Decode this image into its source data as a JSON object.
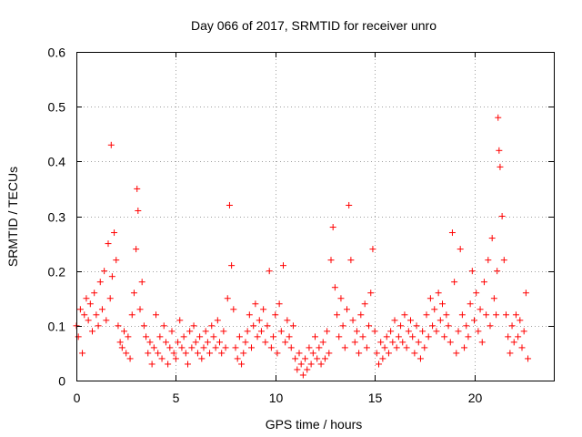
{
  "chart_data": {
    "type": "scatter",
    "title": "Day 066 of 2017, SRMTID for receiver unro",
    "xlabel": "GPS time / hours",
    "ylabel": "SRMTID / TECUs",
    "xlim": [
      0,
      24
    ],
    "ylim": [
      0,
      0.6
    ],
    "xticks": [
      0,
      5,
      10,
      15,
      20
    ],
    "xtick_labels": [
      "0",
      "5",
      "10",
      "15",
      "20"
    ],
    "yticks": [
      0,
      0.1,
      0.2,
      0.3,
      0.4,
      0.5,
      0.6
    ],
    "ytick_labels": [
      "0",
      "0.1",
      "0.2",
      "0.3",
      "0.4",
      "0.5",
      "0.6"
    ],
    "grid": true,
    "marker": "+",
    "series_color": "#ff0000",
    "series": [
      {
        "name": "SRMTID",
        "x": [
          0.0,
          0.1,
          0.2,
          0.3,
          0.4,
          0.5,
          0.6,
          0.7,
          0.8,
          0.9,
          1.0,
          1.1,
          1.2,
          1.3,
          1.4,
          1.5,
          1.6,
          1.7,
          1.75,
          1.8,
          1.9,
          2.0,
          2.1,
          2.2,
          2.3,
          2.4,
          2.5,
          2.6,
          2.7,
          2.8,
          2.9,
          3.0,
          3.05,
          3.1,
          3.2,
          3.3,
          3.4,
          3.5,
          3.6,
          3.7,
          3.8,
          3.9,
          4.0,
          4.1,
          4.2,
          4.3,
          4.4,
          4.5,
          4.6,
          4.7,
          4.8,
          4.9,
          5.0,
          5.1,
          5.2,
          5.3,
          5.4,
          5.5,
          5.6,
          5.7,
          5.8,
          5.9,
          6.0,
          6.1,
          6.2,
          6.3,
          6.4,
          6.5,
          6.6,
          6.7,
          6.8,
          6.9,
          7.0,
          7.1,
          7.2,
          7.3,
          7.4,
          7.5,
          7.6,
          7.7,
          7.8,
          7.9,
          8.0,
          8.1,
          8.2,
          8.3,
          8.4,
          8.5,
          8.6,
          8.7,
          8.8,
          8.9,
          9.0,
          9.1,
          9.2,
          9.3,
          9.4,
          9.5,
          9.6,
          9.7,
          9.8,
          9.9,
          10.0,
          10.1,
          10.2,
          10.3,
          10.4,
          10.5,
          10.6,
          10.7,
          10.8,
          10.9,
          11.0,
          11.1,
          11.2,
          11.3,
          11.4,
          11.5,
          11.6,
          11.7,
          11.8,
          11.9,
          12.0,
          12.1,
          12.2,
          12.3,
          12.4,
          12.5,
          12.6,
          12.7,
          12.8,
          12.9,
          13.0,
          13.1,
          13.2,
          13.3,
          13.4,
          13.5,
          13.6,
          13.7,
          13.8,
          13.9,
          14.0,
          14.1,
          14.2,
          14.3,
          14.4,
          14.5,
          14.6,
          14.7,
          14.8,
          14.9,
          15.0,
          15.1,
          15.2,
          15.3,
          15.4,
          15.5,
          15.6,
          15.7,
          15.8,
          15.9,
          16.0,
          16.1,
          16.2,
          16.3,
          16.4,
          16.5,
          16.6,
          16.7,
          16.8,
          16.9,
          17.0,
          17.1,
          17.2,
          17.3,
          17.4,
          17.5,
          17.6,
          17.7,
          17.8,
          17.9,
          18.0,
          18.1,
          18.2,
          18.3,
          18.4,
          18.5,
          18.6,
          18.7,
          18.8,
          18.9,
          19.0,
          19.1,
          19.2,
          19.3,
          19.4,
          19.5,
          19.6,
          19.7,
          19.8,
          19.9,
          20.0,
          20.1,
          20.2,
          20.3,
          20.4,
          20.5,
          20.6,
          20.7,
          20.8,
          20.9,
          21.0,
          21.1,
          21.15,
          21.2,
          21.25,
          21.3,
          21.4,
          21.5,
          21.6,
          21.7,
          21.8,
          21.9,
          22.0,
          22.1,
          22.2,
          22.3,
          22.4,
          22.5,
          22.6,
          22.7
        ],
        "y": [
          0.1,
          0.08,
          0.13,
          0.05,
          0.12,
          0.15,
          0.11,
          0.14,
          0.09,
          0.16,
          0.12,
          0.1,
          0.18,
          0.13,
          0.2,
          0.11,
          0.25,
          0.15,
          0.43,
          0.19,
          0.27,
          0.22,
          0.1,
          0.07,
          0.06,
          0.09,
          0.05,
          0.08,
          0.04,
          0.12,
          0.16,
          0.24,
          0.35,
          0.31,
          0.13,
          0.18,
          0.1,
          0.08,
          0.05,
          0.07,
          0.03,
          0.06,
          0.12,
          0.05,
          0.08,
          0.04,
          0.1,
          0.07,
          0.03,
          0.06,
          0.09,
          0.05,
          0.04,
          0.07,
          0.11,
          0.06,
          0.08,
          0.05,
          0.03,
          0.09,
          0.06,
          0.1,
          0.07,
          0.05,
          0.08,
          0.04,
          0.06,
          0.09,
          0.07,
          0.05,
          0.1,
          0.08,
          0.06,
          0.11,
          0.07,
          0.05,
          0.09,
          0.06,
          0.15,
          0.32,
          0.21,
          0.13,
          0.06,
          0.04,
          0.08,
          0.03,
          0.05,
          0.07,
          0.09,
          0.12,
          0.06,
          0.1,
          0.14,
          0.08,
          0.11,
          0.09,
          0.13,
          0.07,
          0.1,
          0.2,
          0.06,
          0.08,
          0.12,
          0.05,
          0.14,
          0.09,
          0.21,
          0.07,
          0.11,
          0.08,
          0.06,
          0.1,
          0.04,
          0.02,
          0.05,
          0.03,
          0.01,
          0.04,
          0.02,
          0.06,
          0.03,
          0.05,
          0.08,
          0.04,
          0.06,
          0.03,
          0.07,
          0.04,
          0.09,
          0.05,
          0.22,
          0.28,
          0.17,
          0.12,
          0.08,
          0.15,
          0.1,
          0.06,
          0.13,
          0.32,
          0.22,
          0.11,
          0.07,
          0.09,
          0.05,
          0.12,
          0.08,
          0.14,
          0.06,
          0.1,
          0.16,
          0.24,
          0.09,
          0.05,
          0.03,
          0.07,
          0.04,
          0.06,
          0.08,
          0.05,
          0.09,
          0.07,
          0.11,
          0.06,
          0.08,
          0.1,
          0.07,
          0.12,
          0.06,
          0.09,
          0.11,
          0.08,
          0.05,
          0.1,
          0.07,
          0.04,
          0.09,
          0.06,
          0.12,
          0.08,
          0.15,
          0.1,
          0.13,
          0.09,
          0.16,
          0.11,
          0.14,
          0.08,
          0.12,
          0.1,
          0.07,
          0.27,
          0.18,
          0.05,
          0.09,
          0.24,
          0.12,
          0.06,
          0.1,
          0.08,
          0.14,
          0.2,
          0.11,
          0.16,
          0.09,
          0.13,
          0.07,
          0.18,
          0.12,
          0.22,
          0.1,
          0.26,
          0.15,
          0.12,
          0.2,
          0.48,
          0.42,
          0.39,
          0.3,
          0.22,
          0.12,
          0.08,
          0.05,
          0.1,
          0.07,
          0.12,
          0.08,
          0.11,
          0.06,
          0.09,
          0.16,
          0.04
        ]
      }
    ]
  }
}
